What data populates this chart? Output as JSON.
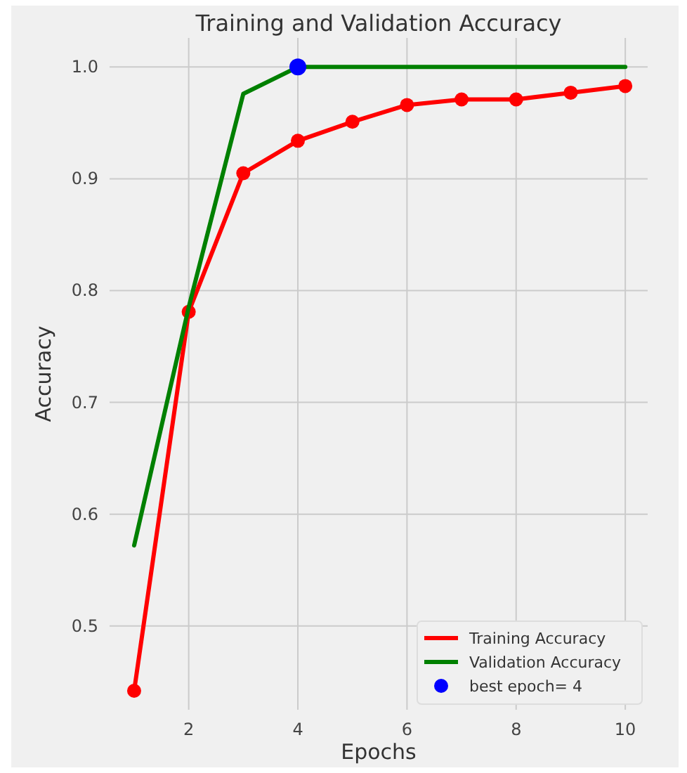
{
  "chart_data": {
    "type": "line",
    "title": "Training and Validation Accuracy",
    "xlabel": "Epochs",
    "ylabel": "Accuracy",
    "xlim": [
      0.55,
      10.41
    ],
    "xticks": [
      2,
      4,
      6,
      8,
      10
    ],
    "ylim": [
      0.425,
      1.026
    ],
    "yticks": [
      0.5,
      0.6,
      0.7,
      0.8,
      0.9,
      {
        "value": 1,
        "label": "1.0"
      }
    ],
    "grid": true,
    "legend": "bottom right",
    "series": [
      {
        "name": "Training Accuracy",
        "color": "#ff0000",
        "marker": "circle",
        "x": [
          1,
          2,
          3,
          4,
          5,
          6,
          7,
          8,
          9,
          10
        ],
        "values": [
          0.442,
          0.781,
          0.905,
          0.934,
          0.951,
          0.966,
          0.971,
          0.971,
          0.977,
          0.983
        ]
      },
      {
        "name": "Validation Accuracy",
        "color": "#008000",
        "marker": "none",
        "x": [
          1,
          2,
          3,
          4,
          5,
          6,
          7,
          8,
          9,
          10
        ],
        "values": [
          0.572,
          0.785,
          0.976,
          1.0,
          1.0,
          1.0,
          1.0,
          1.0,
          1.0,
          1.0
        ]
      },
      {
        "name": "best epoch= 4",
        "type": "scatter",
        "color": "#0000ff",
        "marker": "circle",
        "x": [
          4
        ],
        "values": [
          1.0
        ]
      }
    ]
  }
}
